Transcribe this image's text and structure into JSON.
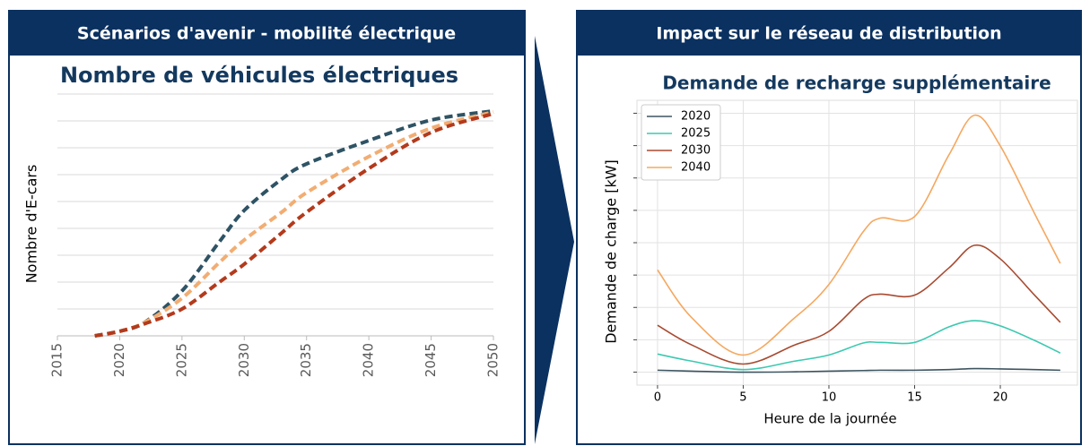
{
  "chart_data": [
    {
      "type": "line",
      "header": "Scénarios d'avenir - mobilité électrique",
      "title": "Nombre de véhicules électriques",
      "ylabel": "Nombre d'E-cars",
      "x": [
        2018,
        2020,
        2022,
        2025,
        2028,
        2030,
        2033,
        2035,
        2040,
        2045,
        2050
      ],
      "xlim": [
        2015,
        2050
      ],
      "xticks": [
        2015,
        2020,
        2025,
        2030,
        2035,
        2040,
        2045,
        2050
      ],
      "xtick_rotation": -90,
      "ylim": [
        0,
        9
      ],
      "yticks": [
        0,
        1,
        2,
        3,
        4,
        5,
        6,
        7,
        8,
        9
      ],
      "ytick_labels": false,
      "grid": "y",
      "dashed": true,
      "series": [
        {
          "color": "#2e5364",
          "values": [
            0,
            0.17,
            0.5,
            1.67,
            3.5,
            4.67,
            5.83,
            6.4,
            7.27,
            8.03,
            8.37
          ]
        },
        {
          "color": "#f2ad72",
          "values": [
            0,
            0.17,
            0.5,
            1.4,
            2.73,
            3.57,
            4.6,
            5.33,
            6.67,
            7.73,
            8.33
          ]
        },
        {
          "color": "#b33a1c",
          "values": [
            0,
            0.17,
            0.45,
            1.0,
            2.0,
            2.67,
            3.83,
            4.6,
            6.23,
            7.57,
            8.27
          ]
        }
      ]
    },
    {
      "type": "line",
      "header": "Impact sur le réseau de distribution",
      "title": "Demande de recharge supplémentaire",
      "xlabel": "Heure de la journée",
      "ylabel": "Demande de charge [kW]",
      "x": [
        0,
        2,
        5,
        8,
        10,
        12,
        13,
        15,
        17,
        18.5,
        20,
        22,
        23.5
      ],
      "xlim": [
        -1.2,
        24.5
      ],
      "xticks": [
        0,
        5,
        10,
        15,
        20
      ],
      "ylim": [
        -0.4,
        8.4
      ],
      "yticks": [
        0,
        1,
        2,
        3,
        4,
        5,
        6,
        7,
        8
      ],
      "ytick_labels": false,
      "grid": "both",
      "legend": "upper left",
      "series": [
        {
          "name": "2020",
          "color": "#3d5560",
          "values": [
            0.06,
            0.03,
            0,
            0.01,
            0.03,
            0.05,
            0.06,
            0.06,
            0.08,
            0.11,
            0.1,
            0.08,
            0.06
          ]
        },
        {
          "name": "2025",
          "color": "#3cc9b0",
          "values": [
            0.56,
            0.34,
            0.08,
            0.34,
            0.53,
            0.9,
            0.92,
            0.92,
            1.4,
            1.59,
            1.43,
            0.98,
            0.59
          ]
        },
        {
          "name": "2030",
          "color": "#a84a30",
          "values": [
            1.45,
            0.84,
            0.25,
            0.84,
            1.26,
            2.24,
            2.41,
            2.38,
            3.22,
            3.92,
            3.5,
            2.38,
            1.54
          ]
        },
        {
          "name": "2040",
          "color": "#f5a860",
          "values": [
            3.16,
            1.68,
            0.53,
            1.68,
            2.71,
            4.34,
            4.76,
            4.81,
            6.71,
            7.94,
            6.99,
            4.9,
            3.36
          ]
        }
      ]
    }
  ]
}
